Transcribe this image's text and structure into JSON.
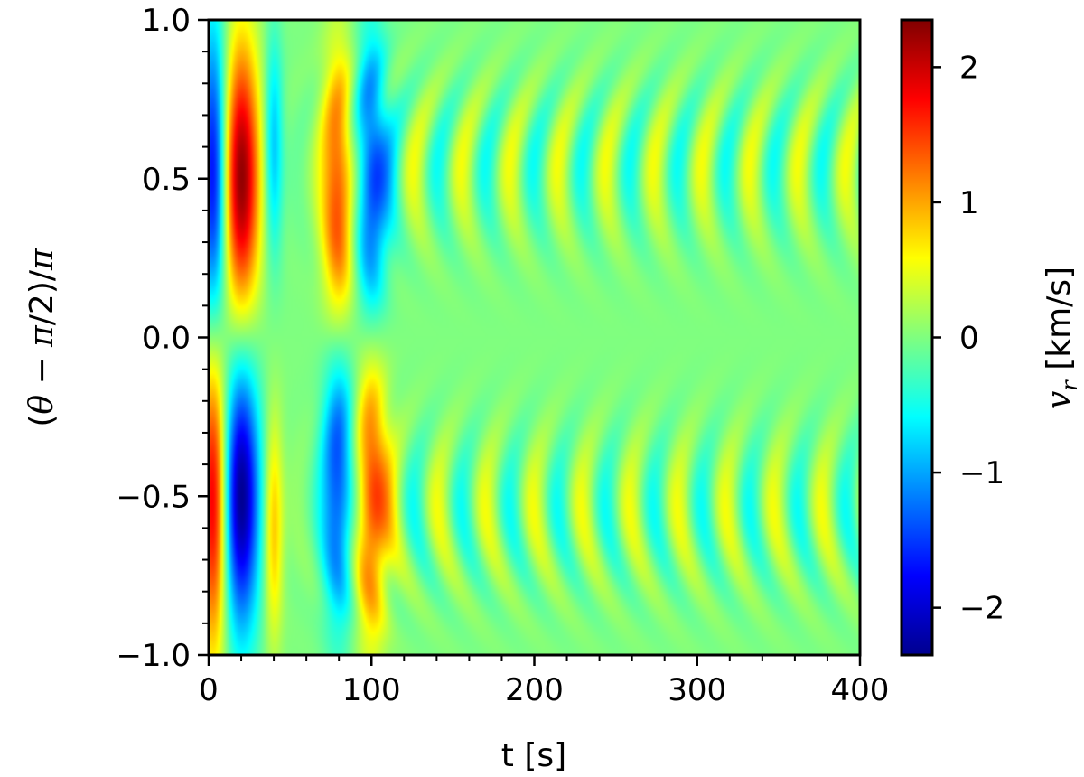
{
  "chart_data": {
    "type": "heatmap",
    "title": "",
    "xlabel": "t [s]",
    "ylabel": "(θ − π/2)/π",
    "xlim": [
      0,
      400
    ],
    "ylim": [
      -1.0,
      1.0
    ],
    "x_ticks": [
      "0",
      "100",
      "200",
      "300",
      "400"
    ],
    "y_ticks": [
      "1.0",
      "0.5",
      "0.0",
      "−0.5",
      "−1.0"
    ],
    "colorbar": {
      "label": "v_r [km/s]",
      "label_main": "v",
      "label_sub": "r",
      "label_units": " [km/s]",
      "range": [
        -2.35,
        2.35
      ],
      "ticks": [
        "2",
        "1",
        "0",
        "−1",
        "−2"
      ],
      "colormap": "jet"
    },
    "features": [
      {
        "t": 3,
        "theta": 0.5,
        "vr": -1.9,
        "dt": 6,
        "dth": 0.35
      },
      {
        "t": 3,
        "theta": -0.5,
        "vr": 2.0,
        "dt": 6,
        "dth": 0.35
      },
      {
        "t": 20,
        "theta": 0.5,
        "vr": 2.3,
        "dt": 8,
        "dth": 0.3
      },
      {
        "t": 20,
        "theta": -0.5,
        "vr": -2.3,
        "dt": 8,
        "dth": 0.3
      },
      {
        "t": 40,
        "theta": 0.6,
        "vr": -0.9,
        "dt": 4,
        "dth": 0.25
      },
      {
        "t": 40,
        "theta": -0.6,
        "vr": 0.9,
        "dt": 4,
        "dth": 0.25
      },
      {
        "t": 80,
        "theta": 0.45,
        "vr": 1.6,
        "dt": 7,
        "dth": 0.3
      },
      {
        "t": 80,
        "theta": -0.45,
        "vr": -1.6,
        "dt": 7,
        "dth": 0.3
      },
      {
        "t": 100,
        "theta": 0.5,
        "vr": -1.7,
        "dt": 7,
        "dth": 0.3
      },
      {
        "t": 100,
        "theta": -0.5,
        "vr": 1.7,
        "dt": 7,
        "dth": 0.3
      }
    ],
    "grid": false
  }
}
